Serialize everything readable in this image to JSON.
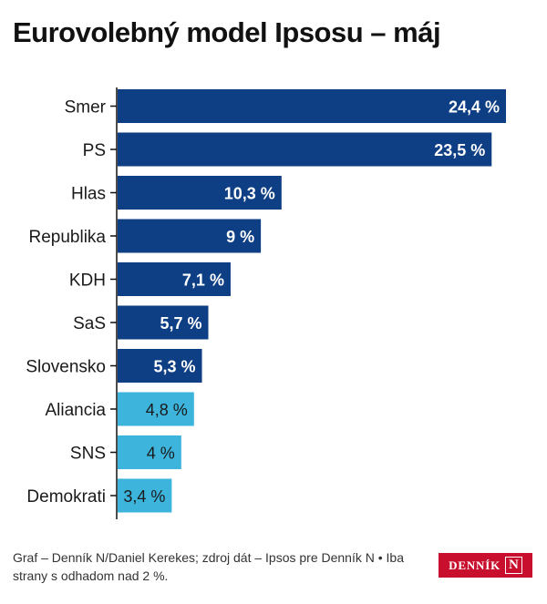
{
  "chart_data": {
    "type": "bar",
    "orientation": "horizontal",
    "title": "Eurovolebný model Ipsosu – máj",
    "categories": [
      "Smer",
      "PS",
      "Hlas",
      "Republika",
      "KDH",
      "SaS",
      "Slovensko",
      "Aliancia",
      "SNS",
      "Demokrati"
    ],
    "values": [
      24.4,
      23.5,
      10.3,
      9,
      7.1,
      5.7,
      5.3,
      4.8,
      4,
      3.4
    ],
    "value_labels": [
      "24,4 %",
      "23,5 %",
      "10,3 %",
      "9 %",
      "7,1 %",
      "5,7 %",
      "5,3 %",
      "4,8 %",
      "4 %",
      "3,4 %"
    ],
    "bar_colors": [
      "#0e3e84",
      "#0e3e84",
      "#0e3e84",
      "#0e3e84",
      "#0e3e84",
      "#0e3e84",
      "#0e3e84",
      "#3cb4dc",
      "#3cb4dc",
      "#3cb4dc"
    ],
    "xlim": [
      0,
      24.4
    ],
    "grid": false,
    "legend": "none"
  },
  "footer": {
    "source": "Graf – Denník N/Daniel Kerekes; zdroj dát – Ipsos pre Denník N • Iba strany s odhadom nad 2 %."
  },
  "logo": {
    "text": "DENNÍK",
    "mark": "N"
  }
}
